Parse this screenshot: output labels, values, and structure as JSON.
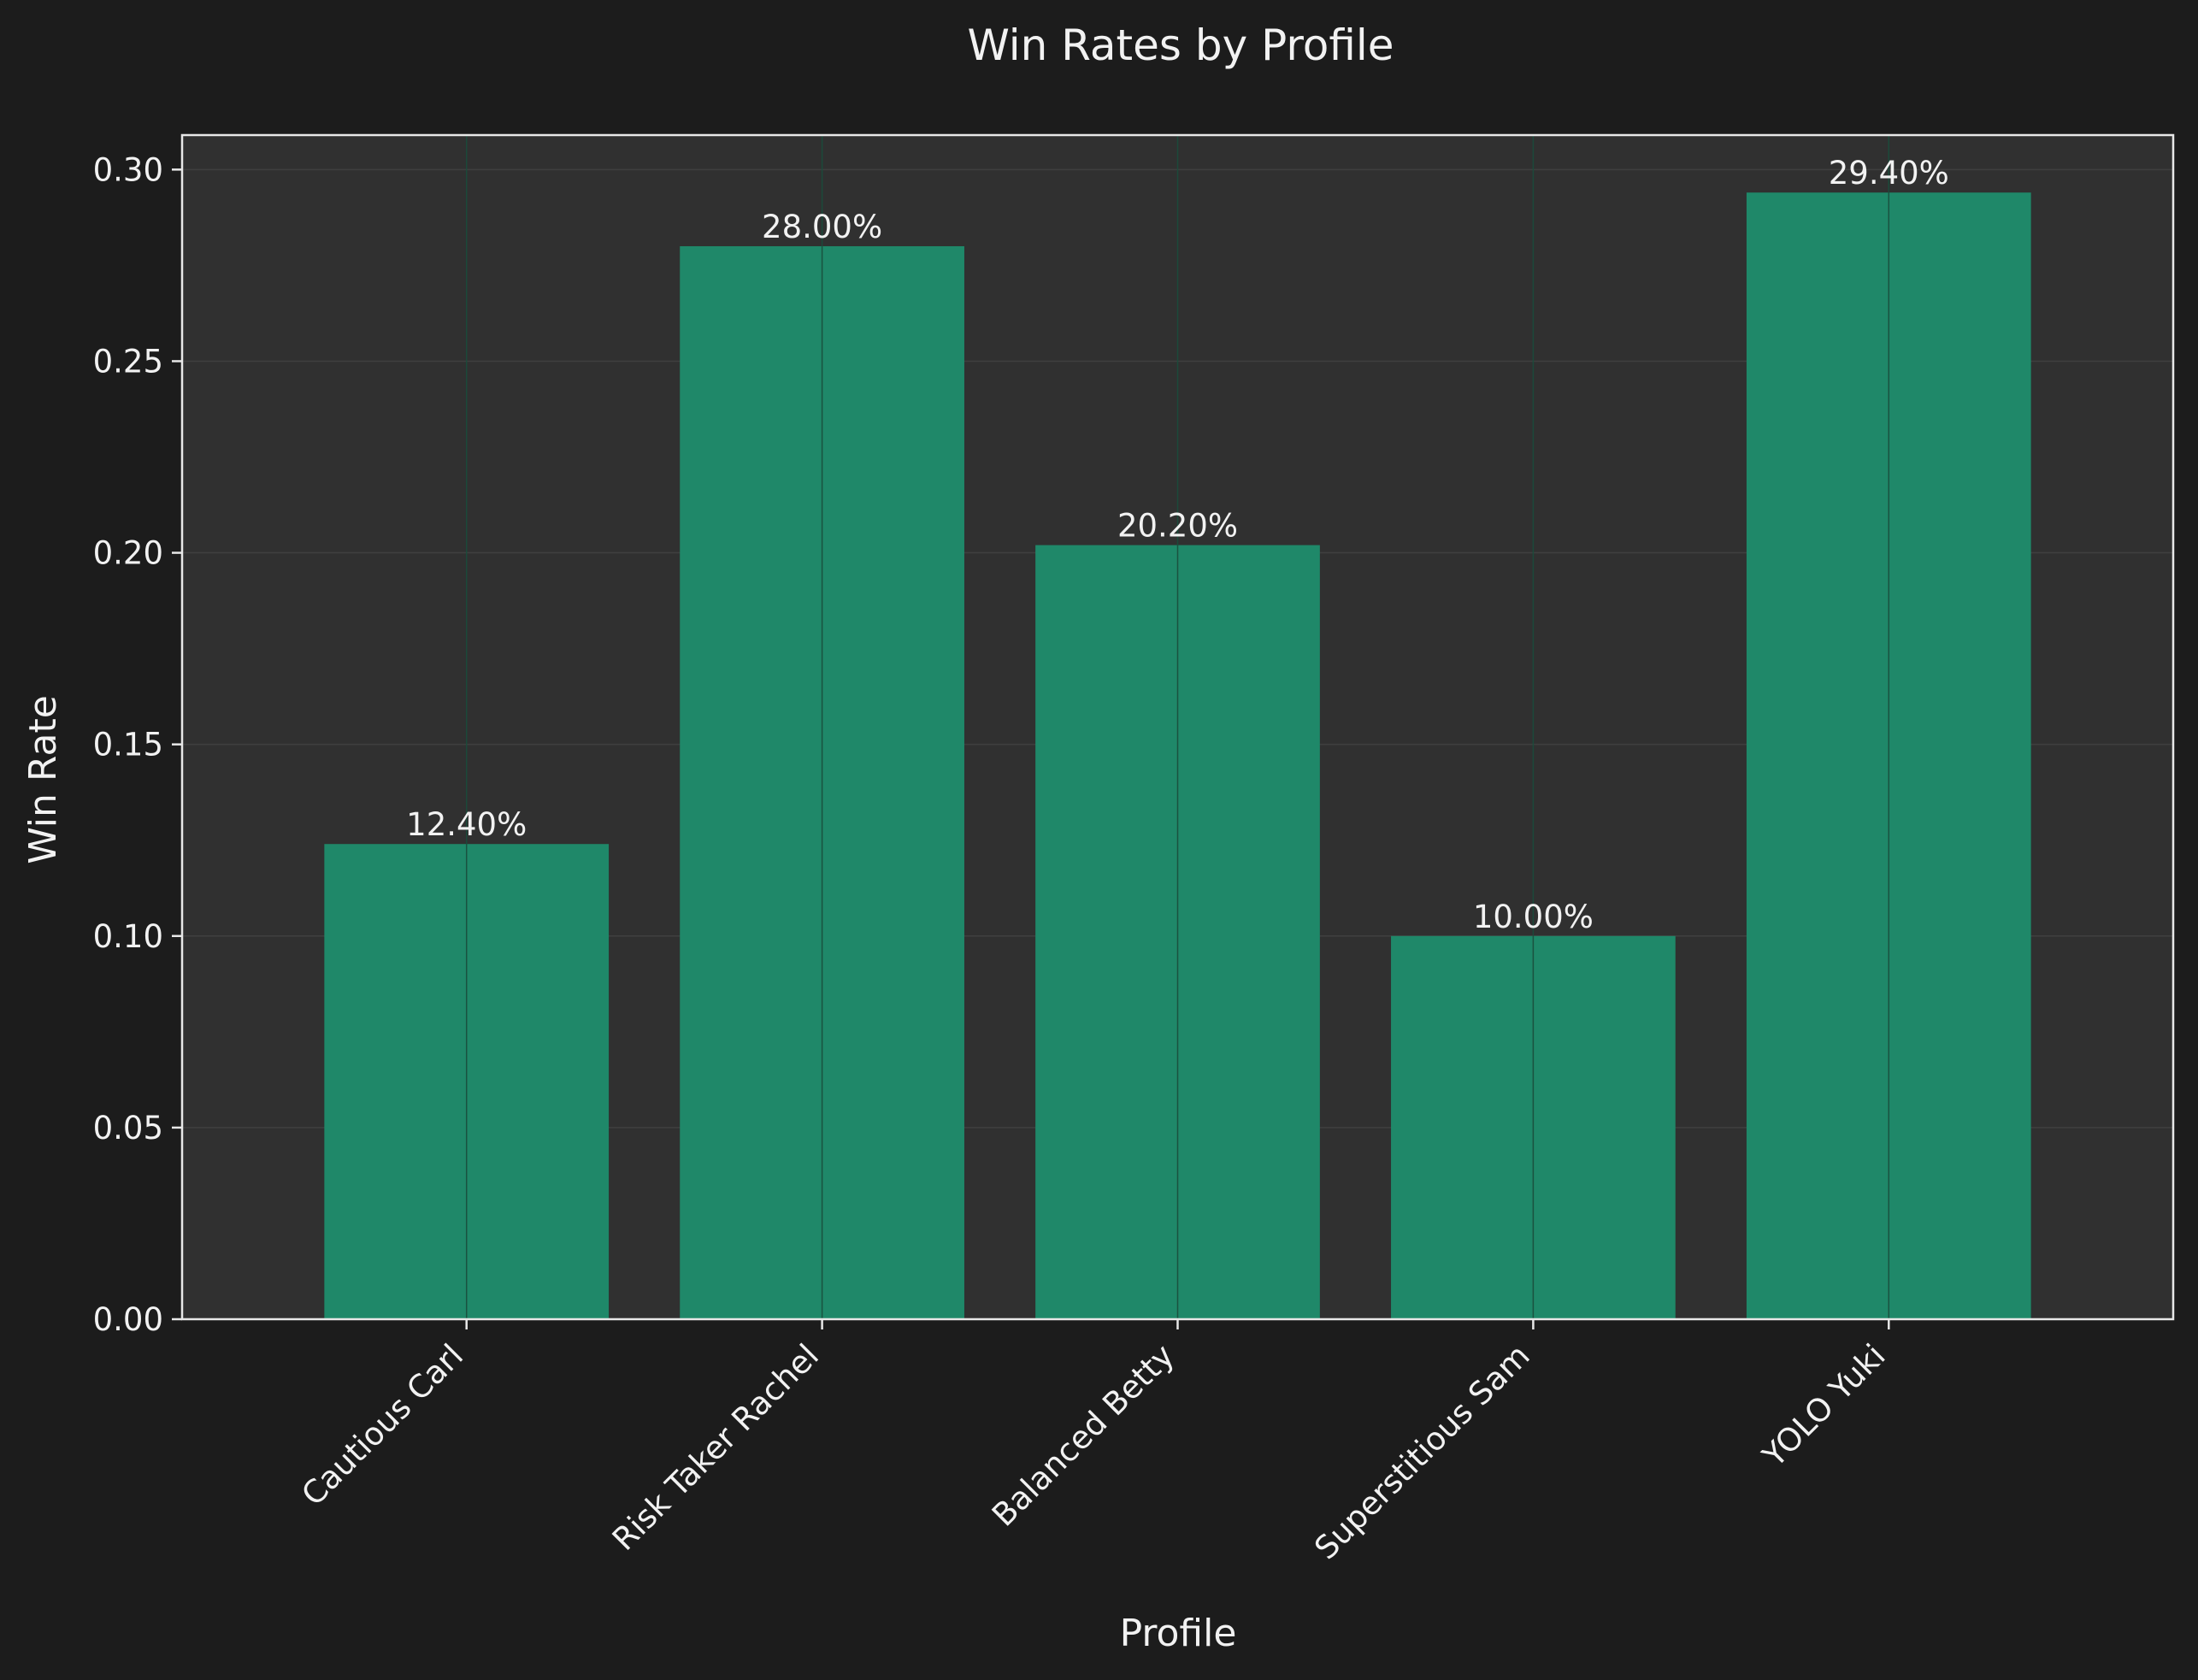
{
  "chart_data": {
    "type": "bar",
    "title": "Win Rates by Profile",
    "xlabel": "Profile",
    "ylabel": "Win Rate",
    "categories": [
      "Cautious Carl",
      "Risk Taker Rachel",
      "Balanced Betty",
      "Superstitious Sam",
      "YOLO Yuki"
    ],
    "values": [
      0.124,
      0.28,
      0.202,
      0.1,
      0.294
    ],
    "value_labels": [
      "12.40%",
      "28.00%",
      "20.20%",
      "10.00%",
      "29.40%"
    ],
    "ylim": [
      0,
      0.309
    ],
    "yticks": [
      0.0,
      0.05,
      0.1,
      0.15,
      0.2,
      0.25,
      0.3
    ],
    "ytick_labels": [
      "0.00",
      "0.05",
      "0.10",
      "0.15",
      "0.20",
      "0.25",
      "0.30"
    ],
    "grid": true,
    "colors": {
      "background": "#1c1c1c",
      "plot_background": "#303030",
      "bar": "#1f8869",
      "text": "#f2f2f2",
      "axes": "#e8e8e8",
      "grid": "#4a4a4a"
    }
  }
}
